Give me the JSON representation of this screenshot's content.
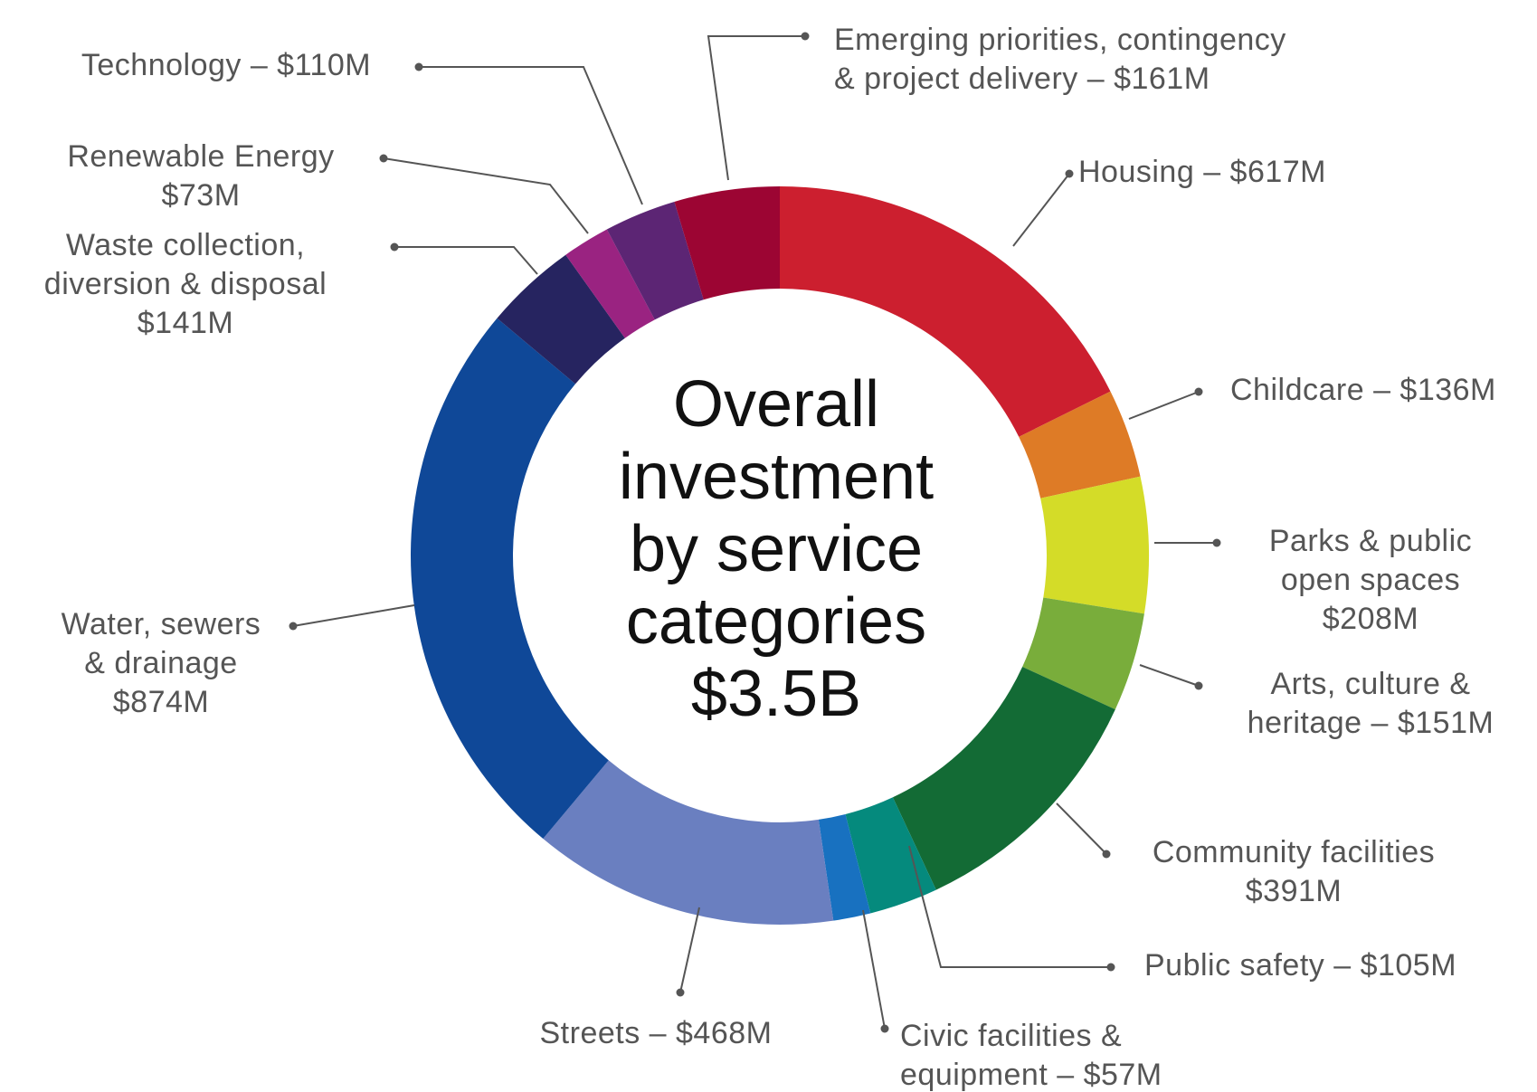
{
  "chart_data": {
    "type": "pie",
    "variant": "donut",
    "center": {
      "lines": [
        "Overall",
        "investment",
        "by service",
        "categories",
        "$3.5B"
      ]
    },
    "slices": [
      {
        "name": "Housing",
        "value": 617,
        "color": "#cc1f2f",
        "label_lines": [
          "Housing – $617M"
        ]
      },
      {
        "name": "Childcare",
        "value": 136,
        "color": "#de7b26",
        "label_lines": [
          "Childcare – $136M"
        ]
      },
      {
        "name": "Parks & public open spaces",
        "value": 208,
        "color": "#d4dc28",
        "label_lines": [
          "Parks & public",
          "open spaces",
          "$208M"
        ]
      },
      {
        "name": "Arts, culture & heritage",
        "value": 151,
        "color": "#79ad3b",
        "label_lines": [
          "Arts, culture &",
          "heritage – $151M"
        ]
      },
      {
        "name": "Community facilities",
        "value": 391,
        "color": "#136b35",
        "label_lines": [
          "Community facilities",
          "$391M"
        ]
      },
      {
        "name": "Public safety",
        "value": 105,
        "color": "#058a7d",
        "label_lines": [
          "Public safety – $105M"
        ]
      },
      {
        "name": "Civic facilities & equipment",
        "value": 57,
        "color": "#1871c0",
        "label_lines": [
          "Civic facilities &",
          "equipment – $57M"
        ]
      },
      {
        "name": "Streets",
        "value": 468,
        "color": "#6a7fc0",
        "label_lines": [
          "Streets – $468M"
        ]
      },
      {
        "name": "Water, sewers & drainage",
        "value": 874,
        "color": "#0f4898",
        "label_lines": [
          "Water, sewers",
          "& drainage",
          "$874M"
        ]
      },
      {
        "name": "Waste collection, diversion & disposal",
        "value": 141,
        "color": "#262460",
        "label_lines": [
          "Waste collection,",
          "diversion & disposal",
          "$141M"
        ]
      },
      {
        "name": "Renewable Energy",
        "value": 73,
        "color": "#9a2381",
        "label_lines": [
          "Renewable Energy",
          "$73M"
        ]
      },
      {
        "name": "Technology",
        "value": 110,
        "color": "#5c2574",
        "label_lines": [
          "Technology – $110M"
        ]
      },
      {
        "name": "Emerging priorities, contingency & project delivery",
        "value": 161,
        "color": "#9c0533",
        "label_lines": [
          "Emerging priorities, contingency",
          "& project delivery – $161M"
        ]
      }
    ]
  }
}
